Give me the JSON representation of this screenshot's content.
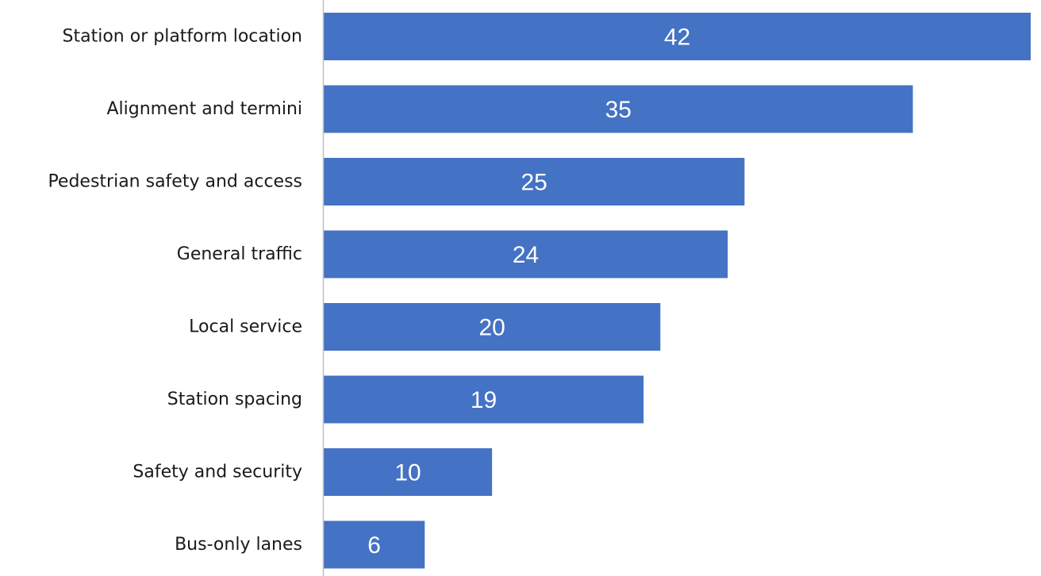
{
  "chart_data": {
    "type": "bar",
    "orientation": "horizontal",
    "title": "",
    "xlabel": "",
    "ylabel": "",
    "categories": [
      "Station or platform location",
      "Alignment and termini",
      "Pedestrian safety and access",
      "General traffic",
      "Local service",
      "Station spacing",
      "Safety and security",
      "Bus-only lanes"
    ],
    "values": [
      42,
      35,
      25,
      24,
      20,
      19,
      10,
      6
    ],
    "data_labels": [
      "42",
      "35",
      "25",
      "24",
      "20",
      "19",
      "10",
      "6"
    ],
    "xlim": [
      0,
      42
    ],
    "grid": false,
    "legend": "none",
    "bar_color": "#4472C4",
    "axis_color": "#BFBFBF",
    "data_label_color": "#FFFFFF"
  }
}
